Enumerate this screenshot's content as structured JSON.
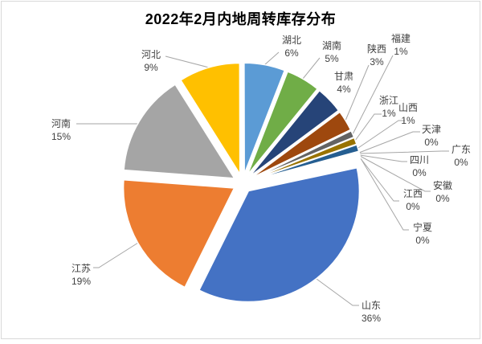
{
  "title": "2022年2月内地周转库存分布",
  "chart_data": {
    "type": "pie",
    "title": "2022年2月内地周转库存分布",
    "unit": "%",
    "legend": "none",
    "style": {
      "exploded": true,
      "start_angle_deg": 78,
      "background": "#FFFFFF",
      "frame_border_color": "#D9D9D9",
      "label_color": "#404040",
      "leader_line_color": "#A6A6A6",
      "slice_border_color": "#FFFFFF"
    },
    "slices": [
      {
        "name": "山东",
        "pct": "36%",
        "value": 36,
        "color": "#4472C4"
      },
      {
        "name": "江苏",
        "pct": "19%",
        "value": 19,
        "color": "#ED7D31"
      },
      {
        "name": "河南",
        "pct": "15%",
        "value": 15,
        "color": "#A5A5A5"
      },
      {
        "name": "河北",
        "pct": "9%",
        "value": 9,
        "color": "#FFC000"
      },
      {
        "name": "湖北",
        "pct": "6%",
        "value": 6,
        "color": "#5B9BD5"
      },
      {
        "name": "湖南",
        "pct": "5%",
        "value": 5,
        "color": "#70AD47"
      },
      {
        "name": "甘肃",
        "pct": "4%",
        "value": 4,
        "color": "#264478"
      },
      {
        "name": "陕西",
        "pct": "3%",
        "value": 3,
        "color": "#9E480E"
      },
      {
        "name": "福建",
        "pct": "1%",
        "value": 1,
        "color": "#636363"
      },
      {
        "name": "浙江",
        "pct": "1%",
        "value": 1,
        "color": "#997300"
      },
      {
        "name": "山西",
        "pct": "1%",
        "value": 1,
        "color": "#255E91"
      },
      {
        "name": "天津",
        "pct": "0%",
        "value": 0,
        "color": "#43682B"
      },
      {
        "name": "广东",
        "pct": "0%",
        "value": 0,
        "color": "#698ED0"
      },
      {
        "name": "四川",
        "pct": "0%",
        "value": 0,
        "color": "#F1975A"
      },
      {
        "name": "安徽",
        "pct": "0%",
        "value": 0,
        "color": "#B7B7B7"
      },
      {
        "name": "江西",
        "pct": "0%",
        "value": 0,
        "color": "#FFCD33"
      },
      {
        "name": "宁夏",
        "pct": "0%",
        "value": 0,
        "color": "#7CAFDD"
      }
    ]
  }
}
